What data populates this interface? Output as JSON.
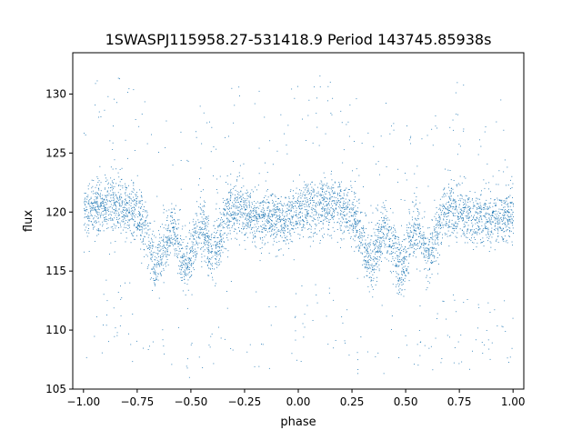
{
  "chart_data": {
    "type": "scatter",
    "title": "1SWASPJ115958.27-531418.9 Period 143745.85938s",
    "xlabel": "phase",
    "ylabel": "flux",
    "xlim": [
      -1.05,
      1.05
    ],
    "ylim": [
      105,
      133.5
    ],
    "x_ticks": [
      -1.0,
      -0.75,
      -0.5,
      -0.25,
      0.0,
      0.25,
      0.5,
      0.75,
      1.0
    ],
    "x_tick_labels": [
      "−1.00",
      "−0.75",
      "−0.50",
      "−0.25",
      "0.00",
      "0.25",
      "0.50",
      "0.75",
      "1.00"
    ],
    "y_ticks": [
      105,
      110,
      115,
      120,
      125,
      130
    ],
    "y_tick_labels": [
      "105",
      "110",
      "115",
      "120",
      "125",
      "130"
    ],
    "grid": false,
    "legend": "none",
    "marker_color": "#1f77b4",
    "series": [
      {
        "description_of_shape": "phase-folded light curve, mirrored about phase 0",
        "baseline_flux": 120,
        "scatter_flux": 1.2,
        "dips": [
          {
            "phase": -0.665,
            "min_flux": 116.5
          },
          {
            "phase": -0.52,
            "min_flux": 115.5
          },
          {
            "phase": -0.395,
            "min_flux": 116.0
          },
          {
            "phase": 0.335,
            "min_flux": 116.5
          },
          {
            "phase": 0.48,
            "min_flux": 115.5
          },
          {
            "phase": 0.605,
            "min_flux": 116.0
          }
        ],
        "sample_points": [
          {
            "x": -1.0,
            "y": 120.0
          },
          {
            "x": -0.8,
            "y": 119.5
          },
          {
            "x": -0.665,
            "y": 116.5
          },
          {
            "x": -0.52,
            "y": 115.5
          },
          {
            "x": -0.395,
            "y": 116.0
          },
          {
            "x": -0.2,
            "y": 121.0
          },
          {
            "x": 0.0,
            "y": 120.0
          },
          {
            "x": 0.2,
            "y": 119.5
          },
          {
            "x": 0.335,
            "y": 116.5
          },
          {
            "x": 0.48,
            "y": 115.5
          },
          {
            "x": 0.605,
            "y": 116.0
          },
          {
            "x": 0.8,
            "y": 121.0
          },
          {
            "x": 1.0,
            "y": 120.0
          }
        ]
      }
    ]
  }
}
